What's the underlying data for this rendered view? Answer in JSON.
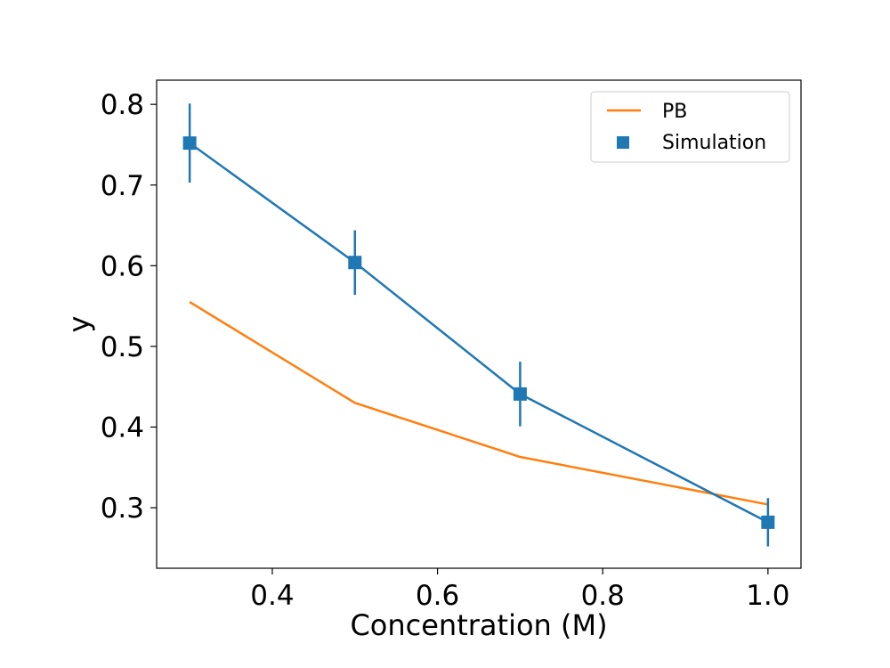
{
  "chart_data": {
    "type": "line",
    "xlabel": "Concentration (M)",
    "ylabel": "y",
    "xlim": [
      0.26,
      1.04
    ],
    "ylim": [
      0.225,
      0.83
    ],
    "xticks": [
      0.4,
      0.6,
      0.8,
      1.0
    ],
    "xtick_labels": [
      "0.4",
      "0.6",
      "0.8",
      "1.0"
    ],
    "yticks": [
      0.3,
      0.4,
      0.5,
      0.6,
      0.7,
      0.8
    ],
    "ytick_labels": [
      "0.3",
      "0.4",
      "0.5",
      "0.6",
      "0.7",
      "0.8"
    ],
    "grid": false,
    "legend_position": "top-right",
    "series": [
      {
        "name": "PB",
        "kind": "line",
        "color": "#ff7f0e",
        "x": [
          0.3,
          0.5,
          0.7,
          1.0
        ],
        "y": [
          0.555,
          0.43,
          0.363,
          0.304
        ]
      },
      {
        "name": "Simulation",
        "kind": "errorbar",
        "marker": "square",
        "color": "#1f77b4",
        "x": [
          0.3,
          0.5,
          0.7,
          1.0
        ],
        "y": [
          0.752,
          0.604,
          0.441,
          0.282
        ],
        "yerr": [
          0.049,
          0.04,
          0.04,
          0.03
        ]
      }
    ]
  }
}
